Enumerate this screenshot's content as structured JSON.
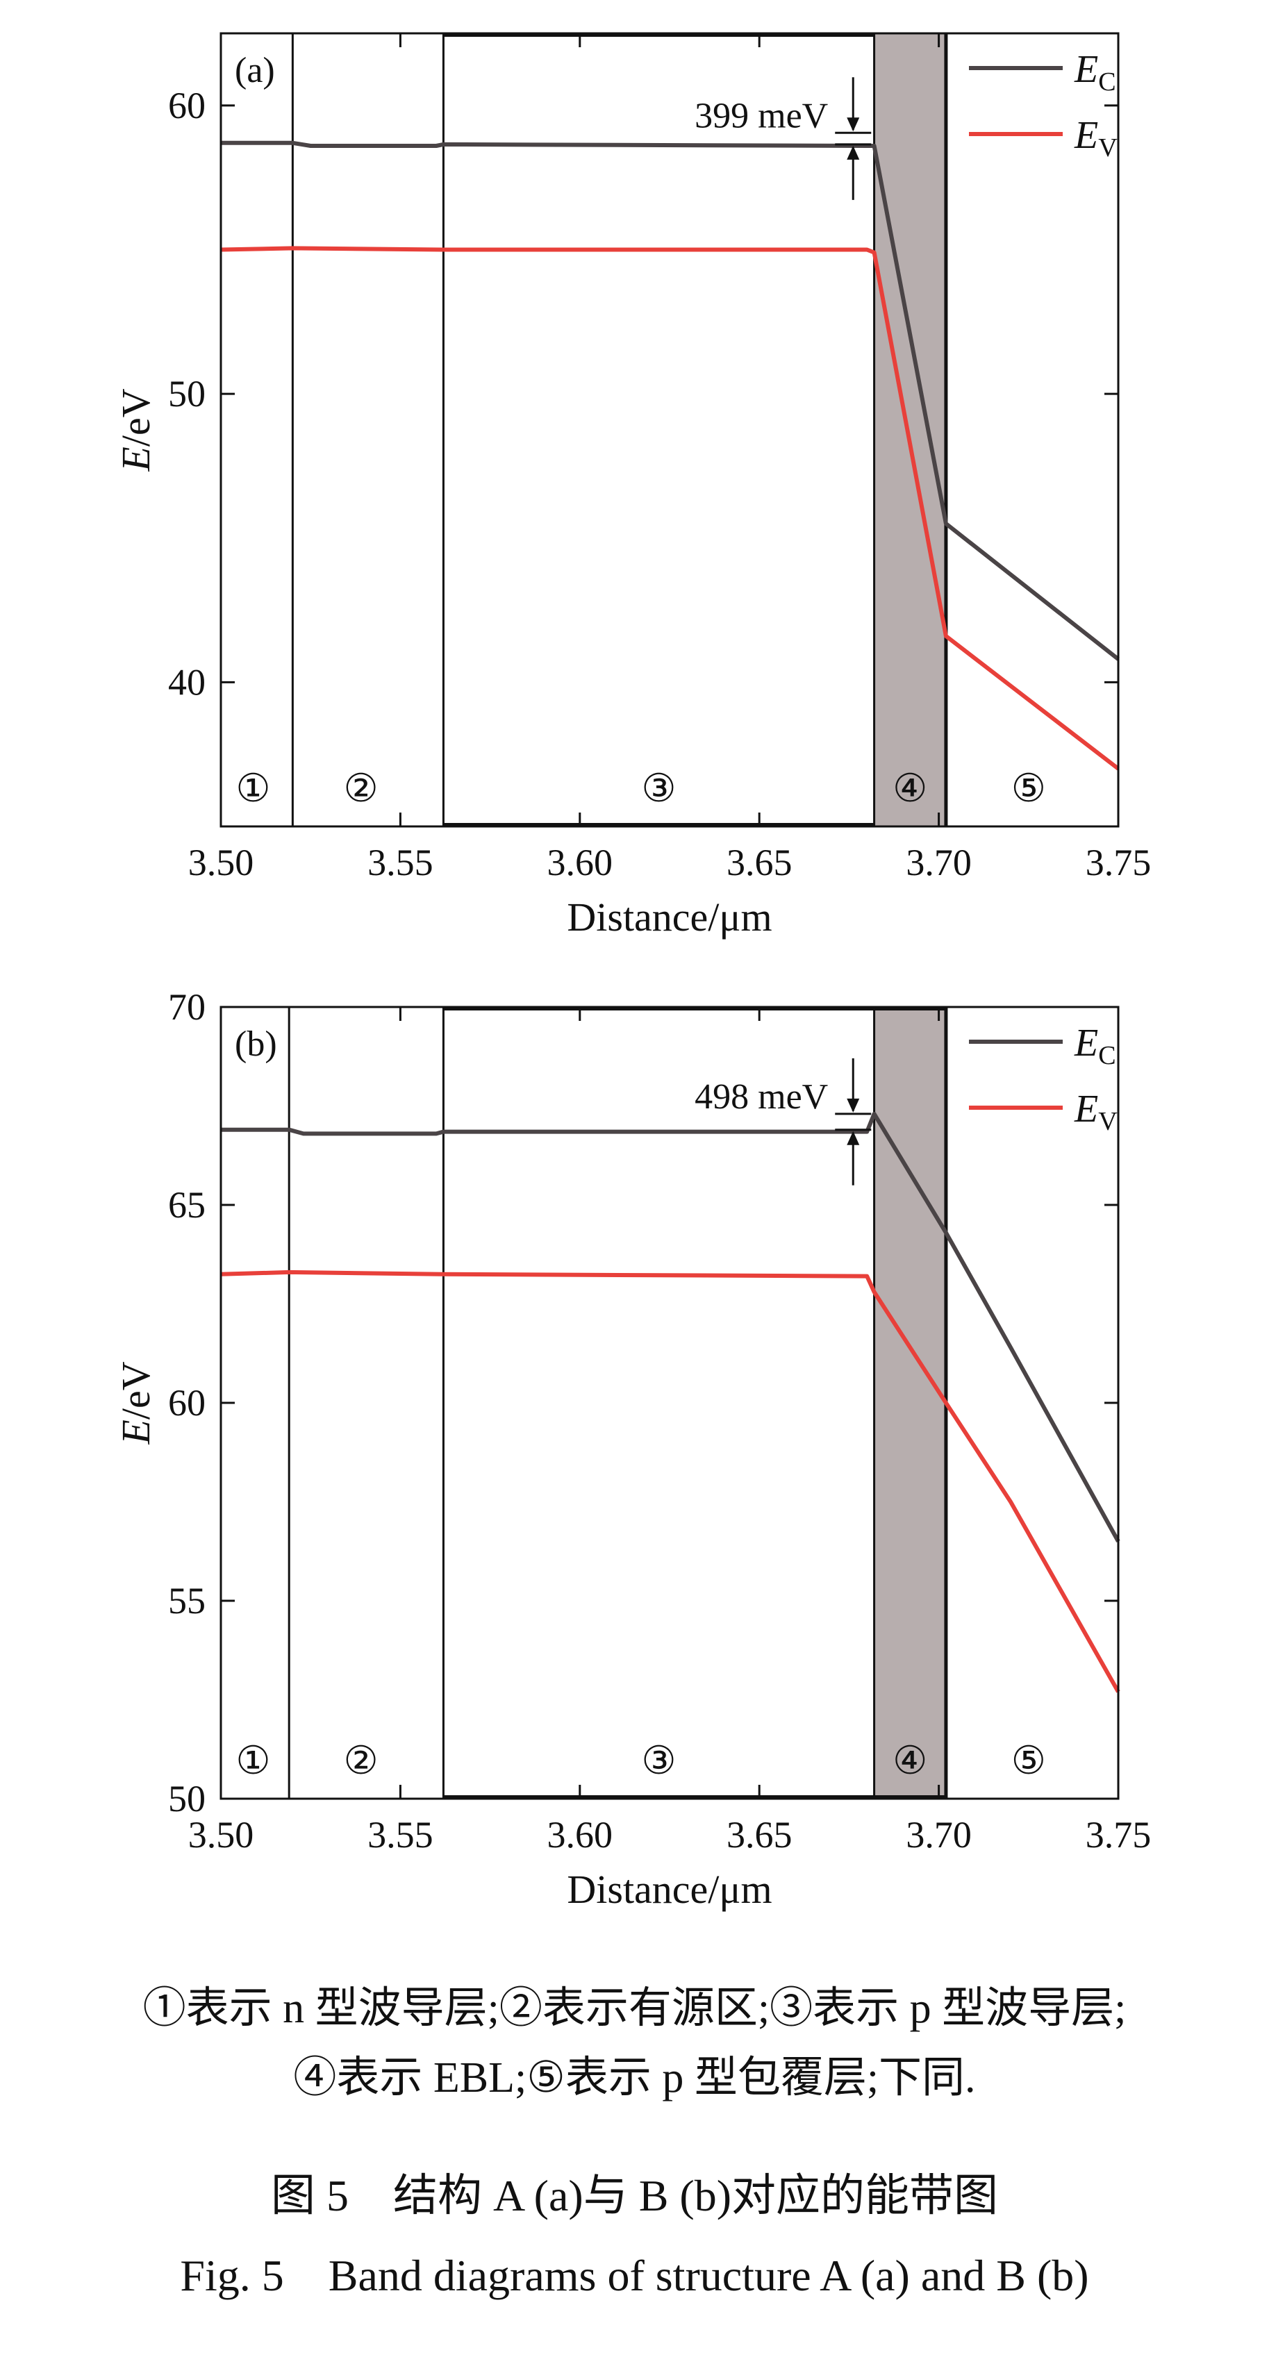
{
  "chart_data": [
    {
      "type": "line",
      "panel_label": "(a)",
      "xlabel": "Distance/μm",
      "ylabel_italic": "E",
      "ylabel_rest": "/eV",
      "xlim": [
        3.5,
        3.75
      ],
      "ylim": [
        35,
        62.5
      ],
      "xticks": [
        3.5,
        3.55,
        3.6,
        3.65,
        3.7,
        3.75
      ],
      "xtick_labels": [
        "3.50",
        "3.55",
        "3.60",
        "3.65",
        "3.70",
        "3.75"
      ],
      "yticks": [
        40,
        50,
        60
      ],
      "ytick_labels": [
        "40",
        "50",
        "60"
      ],
      "boundaries": [
        3.52,
        3.562,
        3.682,
        3.702
      ],
      "shaded_region": [
        3.682,
        3.702
      ],
      "shade_color": "#b7aeae",
      "regions": [
        {
          "label": "①",
          "x": 3.509
        },
        {
          "label": "②",
          "x": 3.539
        },
        {
          "label": "③",
          "x": 3.622
        },
        {
          "label": "④",
          "x": 3.692
        },
        {
          "label": "⑤",
          "x": 3.725
        }
      ],
      "annotation": {
        "text": "399 meV",
        "x": 3.68,
        "y_top": 59.05,
        "y_bottom": 58.65
      },
      "series": [
        {
          "name": "E",
          "name_sub": "C",
          "color": "#4a4446",
          "x": [
            3.5,
            3.52,
            3.525,
            3.56,
            3.562,
            3.68,
            3.682,
            3.702,
            3.75
          ],
          "y": [
            58.7,
            58.7,
            58.6,
            58.6,
            58.65,
            58.6,
            58.6,
            45.5,
            40.8
          ]
        },
        {
          "name": "E",
          "name_sub": "V",
          "color": "#e8403a",
          "x": [
            3.5,
            3.52,
            3.562,
            3.68,
            3.682,
            3.702,
            3.75
          ],
          "y": [
            55.0,
            55.05,
            55.0,
            55.0,
            54.9,
            41.6,
            37.0
          ]
        }
      ],
      "legend_position": "top-right"
    },
    {
      "type": "line",
      "panel_label": "(b)",
      "xlabel": "Distance/μm",
      "ylabel_italic": "E",
      "ylabel_rest": "/eV",
      "xlim": [
        3.5,
        3.75
      ],
      "ylim": [
        50,
        70
      ],
      "xticks": [
        3.5,
        3.55,
        3.6,
        3.65,
        3.7,
        3.75
      ],
      "xtick_labels": [
        "3.50",
        "3.55",
        "3.60",
        "3.65",
        "3.70",
        "3.75"
      ],
      "yticks": [
        50,
        55,
        60,
        65,
        70
      ],
      "ytick_labels": [
        "50",
        "55",
        "60",
        "65",
        "70"
      ],
      "boundaries": [
        3.519,
        3.562,
        3.682,
        3.702
      ],
      "shaded_region": [
        3.682,
        3.702
      ],
      "shade_color": "#b7aeae",
      "regions": [
        {
          "label": "①",
          "x": 3.509
        },
        {
          "label": "②",
          "x": 3.539
        },
        {
          "label": "③",
          "x": 3.622
        },
        {
          "label": "④",
          "x": 3.692
        },
        {
          "label": "⑤",
          "x": 3.725
        }
      ],
      "annotation": {
        "text": "498 meV",
        "x": 3.68,
        "y_top": 67.3,
        "y_bottom": 66.9
      },
      "series": [
        {
          "name": "E",
          "name_sub": "C",
          "color": "#4a4446",
          "x": [
            3.5,
            3.519,
            3.523,
            3.56,
            3.562,
            3.68,
            3.682,
            3.702,
            3.72,
            3.75
          ],
          "y": [
            66.9,
            66.9,
            66.8,
            66.8,
            66.85,
            66.85,
            67.3,
            64.3,
            61.4,
            56.5
          ]
        },
        {
          "name": "E",
          "name_sub": "V",
          "color": "#e8403a",
          "x": [
            3.5,
            3.519,
            3.562,
            3.68,
            3.682,
            3.702,
            3.72,
            3.75
          ],
          "y": [
            63.25,
            63.3,
            63.25,
            63.2,
            62.8,
            60.0,
            57.5,
            52.7
          ]
        }
      ],
      "legend_position": "top-right"
    }
  ],
  "note_line1": "①表示 n 型波导层;②表示有源区;③表示 p 型波导层;",
  "note_line2": "④表示 EBL;⑤表示 p 型包覆层;下同.",
  "caption_cn": "图 5　结构 A (a)与 B (b)对应的能带图",
  "caption_en": "Fig. 5　Band diagrams of structure A (a) and B (b)"
}
